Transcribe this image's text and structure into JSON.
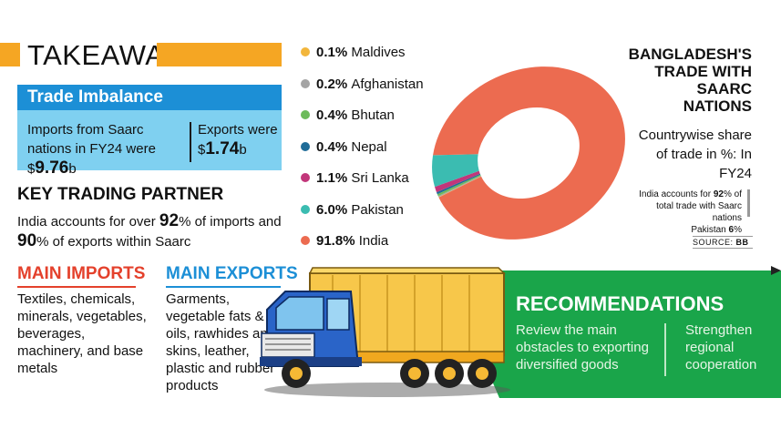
{
  "takeaways": {
    "title": "TAKEAWAYS"
  },
  "trade_imbalance": {
    "heading": "Trade Imbalance",
    "imports_text": "Imports from Saarc nations in FY24 were $",
    "imports_value": "9.76",
    "imports_unit": "b",
    "exports_text": "Exports were $",
    "exports_value": "1.74",
    "exports_unit": "b"
  },
  "key_partner": {
    "heading": "KEY TRADING PARTNER",
    "line1_pre": "India accounts for over ",
    "line1_val": "92",
    "line1_post": "% of imports and",
    "line2_val": "90",
    "line2_post": "% of exports within Saarc"
  },
  "main_imports": {
    "heading": "MAIN IMPORTS",
    "text": "Textiles, chemicals, minerals, vegetables, beverages, machinery, and base metals"
  },
  "main_exports": {
    "heading": "MAIN EXPORTS",
    "text": "Garments, vegetable fats & oils, rawhides and skins, leather, plastic and rubber products"
  },
  "chart_data": {
    "type": "pie",
    "title": "BANGLADESH'S TRADE WITH SAARC NATIONS",
    "subtitle": "Countrywise share of trade in %: In FY24",
    "categories": [
      "Maldives",
      "Afghanistan",
      "Bhutan",
      "Nepal",
      "Sri Lanka",
      "Pakistan",
      "India"
    ],
    "values": [
      0.1,
      0.2,
      0.4,
      0.4,
      1.1,
      6.0,
      91.8
    ],
    "labels": [
      "0.1%",
      "0.2%",
      "0.4%",
      "0.4%",
      "1.1%",
      "6.0%",
      "91.8%"
    ],
    "colors": [
      "#f2b63c",
      "#a4a4a4",
      "#6cbb5a",
      "#1f6c98",
      "#c2367a",
      "#3bbcb1",
      "#ec6b50"
    ],
    "legend_position": "left"
  },
  "chart_title_lines": [
    "BANGLADESH'S",
    "TRADE WITH",
    "SAARC",
    "NATIONS"
  ],
  "chart_subtitle": "Countrywise share of trade in %: In FY24",
  "note": {
    "l1_pre": "India accounts for ",
    "l1_val": "92",
    "l1_post": "% of",
    "l2": "total trade with Saarc nations",
    "l3_pre": "Pakistan ",
    "l3_val": "6",
    "l3_post": "%"
  },
  "source": {
    "label": "SOURCE: ",
    "value": "BB"
  },
  "recommendations": {
    "heading": "RECOMMENDATIONS",
    "item1": "Review the main obstacles to exporting diversified goods",
    "item2": "Strengthen regional cooperation"
  }
}
